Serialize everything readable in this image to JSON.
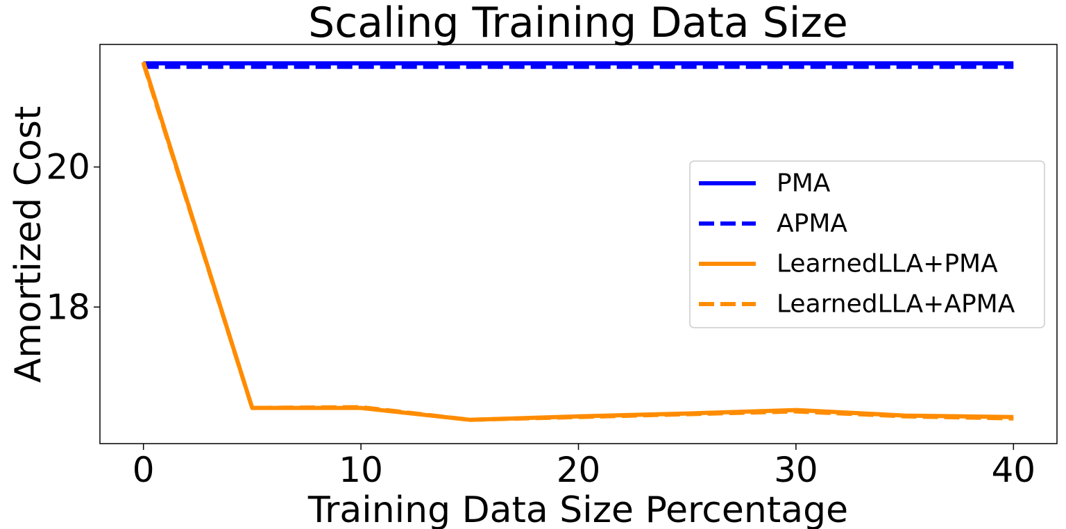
{
  "chart_data": {
    "type": "line",
    "title": "Scaling Training Data Size",
    "xlabel": "Training Data Size Percentage",
    "ylabel": "Amortized Cost",
    "x": [
      0,
      5,
      10,
      15,
      20,
      25,
      30,
      35,
      40
    ],
    "xlim": [
      -2,
      42
    ],
    "ylim": [
      16.05,
      21.75
    ],
    "xticks": [
      0,
      10,
      20,
      30,
      40
    ],
    "yticks": [
      18,
      20
    ],
    "grid": false,
    "legend_position": "center-right",
    "series": [
      {
        "name": "PMA",
        "color": "#0000ff",
        "style": "solid",
        "values": [
          21.48,
          21.48,
          21.48,
          21.48,
          21.48,
          21.48,
          21.48,
          21.48,
          21.48
        ]
      },
      {
        "name": "APMA",
        "color": "#0000ff",
        "style": "dashed",
        "values": [
          21.43,
          21.43,
          21.43,
          21.43,
          21.43,
          21.43,
          21.43,
          21.43,
          21.43
        ]
      },
      {
        "name": "LearnedLLA+PMA",
        "color": "#ff8c00",
        "style": "solid",
        "values": [
          21.5,
          16.56,
          16.56,
          16.39,
          16.44,
          16.48,
          16.53,
          16.45,
          16.43
        ]
      },
      {
        "name": "LearnedLLA+APMA",
        "color": "#ff8c00",
        "style": "dashed",
        "values": [
          21.48,
          16.56,
          16.57,
          16.39,
          16.43,
          16.47,
          16.51,
          16.44,
          16.41
        ]
      }
    ]
  }
}
